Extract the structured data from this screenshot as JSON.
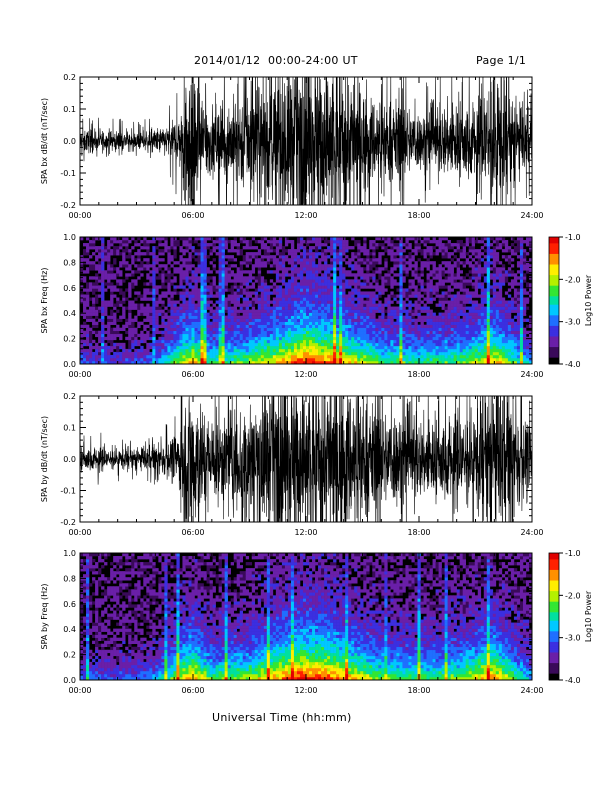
{
  "header": {
    "title": "2014/01/12  00:00-24:00 UT",
    "page": "Page 1/1"
  },
  "footer": {
    "xlabel": "Universal Time (hh:mm)"
  },
  "colors": {
    "trace": "#000000",
    "spectrogram_background": "#000000",
    "colormap": [
      "#000000",
      "#3a0a5a",
      "#6a1fa8",
      "#3b2fe0",
      "#1f6fff",
      "#00c8ff",
      "#00e0a0",
      "#33e633",
      "#b4f000",
      "#ffee00",
      "#ff9000",
      "#ff2000",
      "#e00000"
    ]
  },
  "chart_data": [
    {
      "type": "line",
      "panel": "bx-waveform",
      "ylabel": "SPA bx dB/dt (nT/sec)",
      "ylim": [
        -0.2,
        0.2
      ],
      "yticks": [
        "0.2",
        "0.1",
        "0.0",
        "-0.1",
        "-0.2"
      ],
      "xlim": [
        0,
        24
      ],
      "xticks": [
        "00:00",
        "06:00",
        "12:00",
        "18:00",
        "24:00"
      ],
      "envelope": {
        "hours": [
          0,
          1,
          2,
          3,
          4,
          4.8,
          5.3,
          5.6,
          6.0,
          6.5,
          7,
          8,
          9,
          10,
          11,
          12,
          13,
          14,
          15,
          16,
          17,
          18,
          19,
          20,
          21,
          22,
          23,
          24
        ],
        "amplitude": [
          0.03,
          0.025,
          0.025,
          0.02,
          0.03,
          0.04,
          0.07,
          0.2,
          0.2,
          0.12,
          0.08,
          0.1,
          0.12,
          0.15,
          0.2,
          0.2,
          0.2,
          0.2,
          0.12,
          0.1,
          0.1,
          0.07,
          0.08,
          0.1,
          0.1,
          0.2,
          0.1,
          0.07
        ]
      }
    },
    {
      "type": "heatmap",
      "panel": "bx-spectrogram",
      "ylabel": "SPA bx Freq (Hz)",
      "ylim": [
        0.0,
        1.0
      ],
      "yticks": [
        "1.0",
        "0.8",
        "0.6",
        "0.4",
        "0.2",
        "0.0"
      ],
      "xlim": [
        0,
        24
      ],
      "xticks": [
        "00:00",
        "06:00",
        "12:00",
        "18:00",
        "24:00"
      ],
      "colorbar": {
        "label": "Log10 Power",
        "range": [
          -4.0,
          -1.0
        ],
        "ticks": [
          "-1.0",
          "-2.0",
          "-3.0",
          "-4.0"
        ]
      },
      "activity": {
        "hours": [
          0,
          2,
          4,
          5.5,
          6.0,
          7,
          9,
          11,
          12,
          13,
          14,
          16,
          18,
          20,
          22,
          24
        ],
        "level": [
          0.2,
          0.15,
          0.25,
          0.7,
          0.8,
          0.5,
          0.6,
          0.85,
          1.0,
          0.9,
          0.8,
          0.55,
          0.5,
          0.55,
          0.8,
          0.3
        ]
      }
    },
    {
      "type": "line",
      "panel": "by-waveform",
      "ylabel": "SPA by dB/dt (nT/sec)",
      "ylim": [
        -0.2,
        0.2
      ],
      "yticks": [
        "0.2",
        "0.1",
        "0.0",
        "-0.1",
        "-0.2"
      ],
      "xlim": [
        0,
        24
      ],
      "xticks": [
        "00:00",
        "06:00",
        "12:00",
        "18:00",
        "24:00"
      ],
      "envelope": {
        "hours": [
          0,
          1,
          2,
          3,
          4,
          4.8,
          5.3,
          5.6,
          6.0,
          6.5,
          7,
          8,
          9,
          10,
          11,
          12,
          13,
          14,
          15,
          16,
          17,
          18,
          19,
          20,
          21,
          22,
          23,
          24
        ],
        "amplitude": [
          0.03,
          0.03,
          0.025,
          0.025,
          0.035,
          0.05,
          0.08,
          0.2,
          0.2,
          0.14,
          0.1,
          0.12,
          0.15,
          0.18,
          0.2,
          0.2,
          0.2,
          0.2,
          0.15,
          0.12,
          0.12,
          0.1,
          0.1,
          0.12,
          0.12,
          0.2,
          0.15,
          0.08
        ]
      }
    },
    {
      "type": "heatmap",
      "panel": "by-spectrogram",
      "ylabel": "SPA by Freq (Hz)",
      "ylim": [
        0.0,
        1.0
      ],
      "yticks": [
        "1.0",
        "0.8",
        "0.6",
        "0.4",
        "0.2",
        "0.0"
      ],
      "xlim": [
        0,
        24
      ],
      "xticks": [
        "00:00",
        "06:00",
        "12:00",
        "18:00",
        "24:00"
      ],
      "colorbar": {
        "label": "Log10 Power",
        "range": [
          -4.0,
          -1.0
        ],
        "ticks": [
          "-1.0",
          "-2.0",
          "-3.0",
          "-4.0"
        ]
      },
      "activity": {
        "hours": [
          0,
          2,
          4,
          5.5,
          6.0,
          7,
          9,
          11,
          12,
          13,
          14,
          16,
          18,
          20,
          22,
          24
        ],
        "level": [
          0.25,
          0.2,
          0.3,
          0.75,
          0.85,
          0.55,
          0.65,
          0.9,
          1.0,
          0.95,
          0.85,
          0.6,
          0.55,
          0.6,
          0.85,
          0.35
        ]
      }
    }
  ]
}
